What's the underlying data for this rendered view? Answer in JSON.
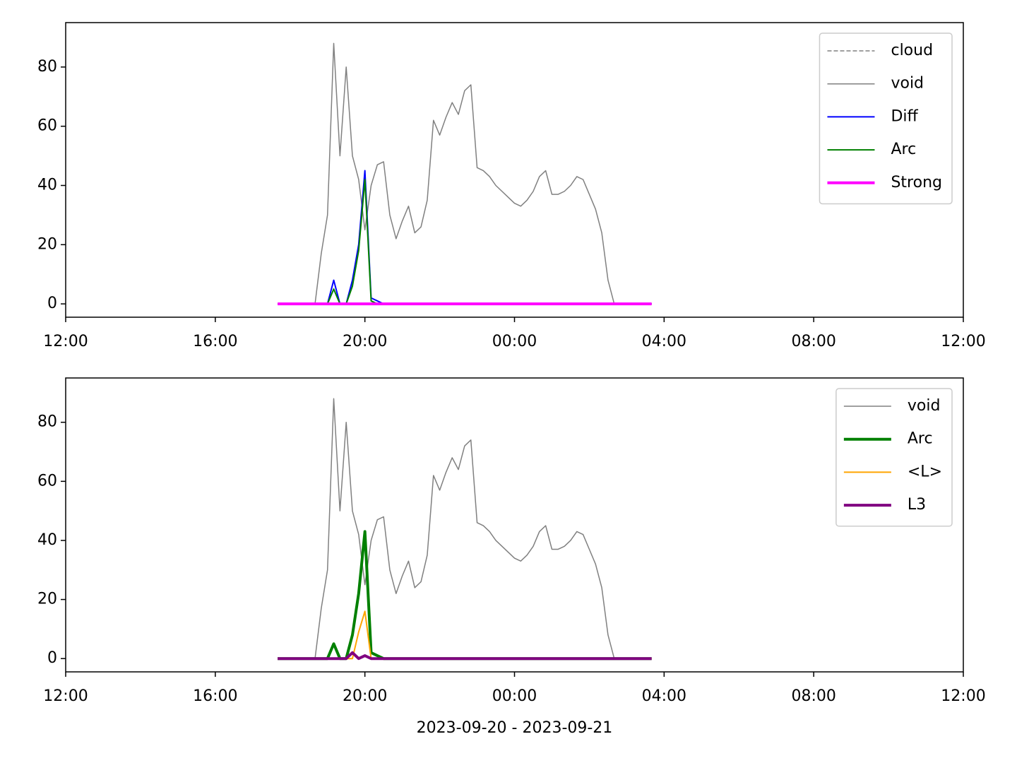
{
  "chart_data": [
    {
      "type": "line",
      "x": [
        1060,
        1070,
        1080,
        1090,
        1100,
        1110,
        1120,
        1130,
        1140,
        1150,
        1160,
        1170,
        1180,
        1190,
        1200,
        1210,
        1220,
        1230,
        1240,
        1250,
        1260,
        1270,
        1280,
        1290,
        1300,
        1310,
        1320,
        1330,
        1340,
        1350,
        1360,
        1370,
        1380,
        1390,
        1400,
        1410,
        1420,
        1430,
        1440,
        1450,
        1460,
        1470,
        1480,
        1490,
        1500,
        1510,
        1520,
        1530,
        1540,
        1550,
        1560,
        1570,
        1580,
        1590,
        1600,
        1610,
        1620,
        1630,
        1640,
        1650,
        1660
      ],
      "xlim": [
        720,
        2160
      ],
      "xticks": [
        {
          "value": 720,
          "label": "12:00"
        },
        {
          "value": 960,
          "label": "16:00"
        },
        {
          "value": 1200,
          "label": "20:00"
        },
        {
          "value": 1440,
          "label": "00:00"
        },
        {
          "value": 1680,
          "label": "04:00"
        },
        {
          "value": 1920,
          "label": "08:00"
        },
        {
          "value": 2160,
          "label": "12:00"
        }
      ],
      "ylim": [
        -4.5,
        95
      ],
      "yticks": [
        0,
        20,
        40,
        60,
        80
      ],
      "legend": "upper right",
      "series": [
        {
          "name": "cloud",
          "color": "#808080",
          "linestyle": "dashed",
          "linewidth": 1.5,
          "values": [
            0,
            0,
            0,
            0,
            0,
            0,
            0,
            0,
            0,
            0,
            0,
            0,
            0,
            0,
            0,
            0,
            0,
            0,
            0,
            0,
            0,
            0,
            0,
            0,
            0,
            0,
            0,
            0,
            0,
            0,
            0,
            0,
            0,
            0,
            0,
            0,
            0,
            0,
            0,
            0,
            0,
            0,
            0,
            0,
            0,
            0,
            0,
            0,
            0,
            0,
            0,
            0,
            0,
            0,
            0,
            0,
            0,
            0,
            0,
            0,
            0
          ]
        },
        {
          "name": "void",
          "color": "#808080",
          "linestyle": "solid",
          "linewidth": 1.5,
          "values": [
            null,
            null,
            null,
            null,
            null,
            null,
            0,
            17,
            30,
            88,
            50,
            80,
            50,
            42,
            25,
            40,
            47,
            48,
            30,
            22,
            28,
            33,
            24,
            26,
            35,
            62,
            57,
            63,
            68,
            64,
            72,
            74,
            46,
            45,
            43,
            40,
            38,
            36,
            34,
            33,
            35,
            38,
            43,
            45,
            37,
            37,
            38,
            40,
            43,
            42,
            37,
            32,
            24,
            8,
            0,
            null,
            null,
            null,
            null,
            null,
            null
          ]
        },
        {
          "name": "Diff",
          "color": "#0000ff",
          "linestyle": "solid",
          "linewidth": 2,
          "values": [
            0,
            0,
            0,
            0,
            0,
            0,
            0,
            0,
            0,
            8,
            0,
            0,
            8,
            20,
            45,
            2,
            1,
            0,
            0,
            0,
            0,
            0,
            0,
            0,
            0,
            0,
            0,
            0,
            0,
            0,
            0,
            0,
            0,
            0,
            0,
            0,
            0,
            0,
            0,
            0,
            0,
            0,
            0,
            0,
            0,
            0,
            0,
            0,
            0,
            0,
            0,
            0,
            0,
            0,
            0,
            0,
            0,
            0,
            0,
            0,
            0
          ]
        },
        {
          "name": "Arc",
          "color": "#008000",
          "linestyle": "solid",
          "linewidth": 2,
          "values": [
            0,
            0,
            0,
            0,
            0,
            0,
            0,
            0,
            0,
            5,
            0,
            0,
            6,
            18,
            42,
            1,
            0,
            0,
            0,
            0,
            0,
            0,
            0,
            0,
            0,
            0,
            0,
            0,
            0,
            0,
            0,
            0,
            0,
            0,
            0,
            0,
            0,
            0,
            0,
            0,
            0,
            0,
            0,
            0,
            0,
            0,
            0,
            0,
            0,
            0,
            0,
            0,
            0,
            0,
            0,
            0,
            0,
            0,
            0,
            0,
            0
          ]
        },
        {
          "name": "Strong",
          "color": "#ff00ff",
          "linestyle": "solid",
          "linewidth": 4,
          "values": [
            0,
            0,
            0,
            0,
            0,
            0,
            0,
            0,
            0,
            0,
            0,
            0,
            0,
            0,
            0,
            0,
            0,
            0,
            0,
            0,
            0,
            0,
            0,
            0,
            0,
            0,
            0,
            0,
            0,
            0,
            0,
            0,
            0,
            0,
            0,
            0,
            0,
            0,
            0,
            0,
            0,
            0,
            0,
            0,
            0,
            0,
            0,
            0,
            0,
            0,
            0,
            0,
            0,
            0,
            0,
            0,
            0,
            0,
            0,
            0,
            0
          ]
        }
      ]
    },
    {
      "type": "line",
      "x": [
        1060,
        1070,
        1080,
        1090,
        1100,
        1110,
        1120,
        1130,
        1140,
        1150,
        1160,
        1170,
        1180,
        1190,
        1200,
        1210,
        1220,
        1230,
        1240,
        1250,
        1260,
        1270,
        1280,
        1290,
        1300,
        1310,
        1320,
        1330,
        1340,
        1350,
        1360,
        1370,
        1380,
        1390,
        1400,
        1410,
        1420,
        1430,
        1440,
        1450,
        1460,
        1470,
        1480,
        1490,
        1500,
        1510,
        1520,
        1530,
        1540,
        1550,
        1560,
        1570,
        1580,
        1590,
        1600,
        1610,
        1620,
        1630,
        1640,
        1650,
        1660
      ],
      "xlim": [
        720,
        2160
      ],
      "xticks": [
        {
          "value": 720,
          "label": "12:00"
        },
        {
          "value": 960,
          "label": "16:00"
        },
        {
          "value": 1200,
          "label": "20:00"
        },
        {
          "value": 1440,
          "label": "00:00"
        },
        {
          "value": 1680,
          "label": "04:00"
        },
        {
          "value": 1920,
          "label": "08:00"
        },
        {
          "value": 2160,
          "label": "12:00"
        }
      ],
      "ylim": [
        -4.5,
        95
      ],
      "yticks": [
        0,
        20,
        40,
        60,
        80
      ],
      "xlabel": "2023-09-20 - 2023-09-21",
      "legend": "upper right",
      "series": [
        {
          "name": "void",
          "color": "#808080",
          "linestyle": "solid",
          "linewidth": 1.5,
          "values": [
            null,
            null,
            null,
            null,
            null,
            null,
            0,
            17,
            30,
            88,
            50,
            80,
            50,
            42,
            25,
            40,
            47,
            48,
            30,
            22,
            28,
            33,
            24,
            26,
            35,
            62,
            57,
            63,
            68,
            64,
            72,
            74,
            46,
            45,
            43,
            40,
            38,
            36,
            34,
            33,
            35,
            38,
            43,
            45,
            37,
            37,
            38,
            40,
            43,
            42,
            37,
            32,
            24,
            8,
            0,
            null,
            null,
            null,
            null,
            null,
            null
          ]
        },
        {
          "name": "Arc",
          "color": "#008000",
          "linestyle": "solid",
          "linewidth": 4,
          "values": [
            0,
            0,
            0,
            0,
            0,
            0,
            0,
            0,
            0,
            5,
            0,
            0,
            8,
            22,
            43,
            2,
            1,
            0,
            0,
            0,
            0,
            0,
            0,
            0,
            0,
            0,
            0,
            0,
            0,
            0,
            0,
            0,
            0,
            0,
            0,
            0,
            0,
            0,
            0,
            0,
            0,
            0,
            0,
            0,
            0,
            0,
            0,
            0,
            0,
            0,
            0,
            0,
            0,
            0,
            0,
            0,
            0,
            0,
            0,
            0,
            0
          ]
        },
        {
          "name": "<L>",
          "color": "#ffa500",
          "linestyle": "solid",
          "linewidth": 2,
          "values": [
            0,
            0,
            0,
            0,
            0,
            0,
            0,
            0,
            0,
            0,
            0,
            0,
            0,
            9,
            16,
            0,
            0,
            0,
            0,
            0,
            0,
            0,
            0,
            0,
            0,
            0,
            0,
            0,
            0,
            0,
            0,
            0,
            0,
            0,
            0,
            0,
            0,
            0,
            0,
            0,
            0,
            0,
            0,
            0,
            0,
            0,
            0,
            0,
            0,
            0,
            0,
            0,
            0,
            0,
            0,
            0,
            0,
            0,
            0,
            0,
            0
          ]
        },
        {
          "name": "L3",
          "color": "#800080",
          "linestyle": "solid",
          "linewidth": 4,
          "values": [
            0,
            0,
            0,
            0,
            0,
            0,
            0,
            0,
            0,
            0,
            0,
            0,
            2,
            0,
            1,
            0,
            0,
            0,
            0,
            0,
            0,
            0,
            0,
            0,
            0,
            0,
            0,
            0,
            0,
            0,
            0,
            0,
            0,
            0,
            0,
            0,
            0,
            0,
            0,
            0,
            0,
            0,
            0,
            0,
            0,
            0,
            0,
            0,
            0,
            0,
            0,
            0,
            0,
            0,
            0,
            0,
            0,
            0,
            0,
            0,
            0
          ]
        }
      ]
    }
  ]
}
